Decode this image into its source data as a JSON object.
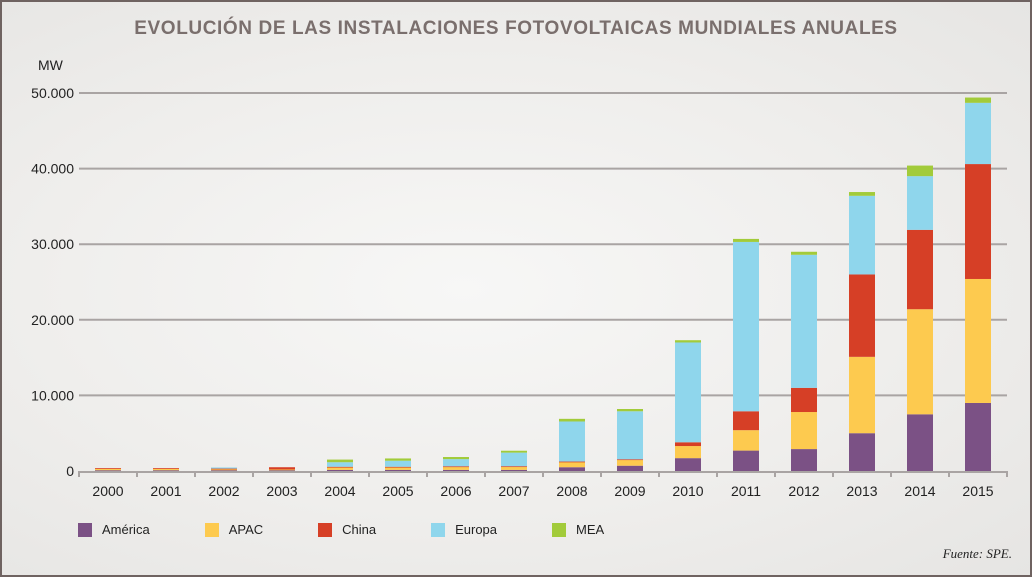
{
  "chart_data": {
    "type": "bar",
    "stacked": true,
    "title": "EVOLUCIÓN DE LAS INSTALACIONES FOTOVOLTAICAS MUNDIALES ANUALES",
    "ylabel": "MW",
    "xlabel": "",
    "ylim": [
      0,
      50000
    ],
    "yticks": [
      0,
      10000,
      20000,
      30000,
      40000,
      50000
    ],
    "ytick_labels": [
      "0",
      "10.000",
      "20.000",
      "30.000",
      "40.000",
      "50.000"
    ],
    "grid": true,
    "legend_position": "bottom-left",
    "categories": [
      "2000",
      "2001",
      "2002",
      "2003",
      "2004",
      "2005",
      "2006",
      "2007",
      "2008",
      "2009",
      "2010",
      "2011",
      "2012",
      "2013",
      "2014",
      "2015"
    ],
    "series": [
      {
        "name": "América",
        "color": "#7b5185",
        "values": [
          100,
          100,
          100,
          100,
          150,
          150,
          150,
          150,
          500,
          700,
          1700,
          2700,
          2900,
          5000,
          7500,
          9000
        ]
      },
      {
        "name": "APAC",
        "color": "#fdca4f",
        "values": [
          250,
          250,
          200,
          100,
          400,
          400,
          450,
          450,
          700,
          800,
          1600,
          2700,
          4900,
          10100,
          13900,
          16400
        ]
      },
      {
        "name": "China",
        "color": "#d63f26",
        "values": [
          20,
          20,
          20,
          300,
          10,
          10,
          20,
          30,
          50,
          50,
          500,
          2500,
          3200,
          10900,
          10500,
          15200
        ]
      },
      {
        "name": "Europa",
        "color": "#8fd6ec",
        "values": [
          0,
          0,
          150,
          0,
          600,
          800,
          950,
          1800,
          5300,
          6350,
          13200,
          22400,
          17600,
          10400,
          7100,
          8100
        ]
      },
      {
        "name": "MEA",
        "color": "#a2cb3a",
        "values": [
          0,
          0,
          0,
          0,
          350,
          300,
          280,
          250,
          350,
          300,
          300,
          400,
          400,
          500,
          1400,
          700
        ]
      }
    ],
    "source": "Fuente: SPE."
  }
}
